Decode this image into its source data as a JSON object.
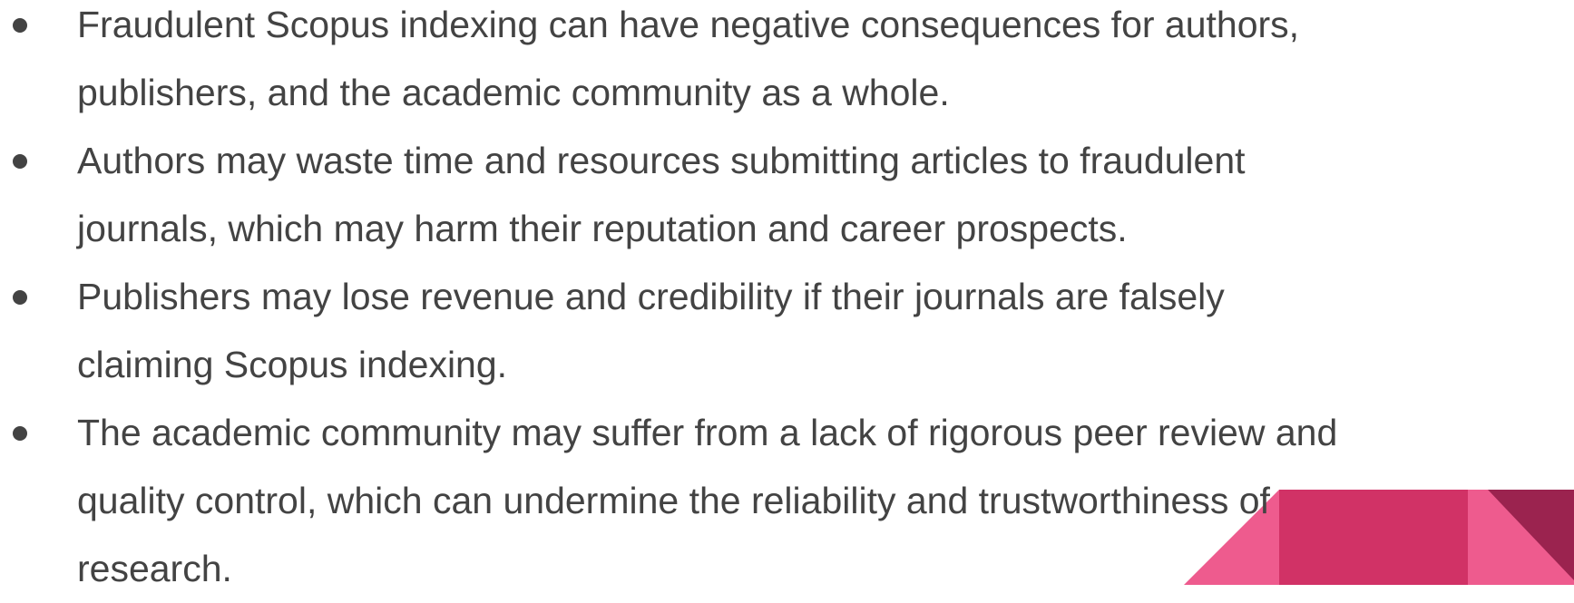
{
  "bullets": [
    {
      "lines": [
        "Fraudulent Scopus indexing can have negative consequences for authors,",
        "publishers, and the academic community as a whole."
      ]
    },
    {
      "lines": [
        "Authors may waste time and resources submitting articles to fraudulent",
        "journals, which may harm their reputation and career prospects."
      ]
    },
    {
      "lines": [
        "Publishers may lose revenue and credibility if their journals are falsely",
        "claiming Scopus indexing."
      ]
    },
    {
      "lines": [
        "The academic community may suffer from a lack of rigorous peer review and",
        "quality control, which can undermine the reliability and trustworthiness of",
        "research."
      ]
    }
  ]
}
